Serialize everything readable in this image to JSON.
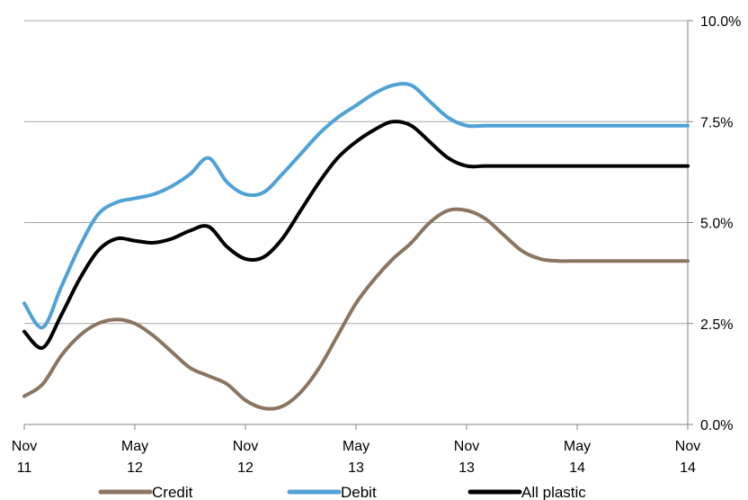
{
  "chart_data": {
    "type": "line",
    "title": "",
    "xlabel": "",
    "ylabel": "",
    "y_axis_side": "right",
    "ylim": [
      0,
      10
    ],
    "yticks": [
      0,
      2.5,
      5,
      7.5,
      10
    ],
    "ytick_labels": [
      "0.0%",
      "2.5%",
      "5.0%",
      "7.5%",
      "10.0%"
    ],
    "grid": "horizontal",
    "legend_position": "bottom",
    "x": [
      "2011-11",
      "2011-12",
      "2012-01",
      "2012-02",
      "2012-03",
      "2012-04",
      "2012-05",
      "2012-06",
      "2012-07",
      "2012-08",
      "2012-09",
      "2012-10",
      "2012-11",
      "2012-12",
      "2013-01",
      "2013-02",
      "2013-03",
      "2013-04",
      "2013-05",
      "2013-06",
      "2013-07",
      "2013-08",
      "2013-09",
      "2013-10",
      "2013-11",
      "2013-12",
      "2014-01",
      "2014-02",
      "2014-03",
      "2014-04",
      "2014-05",
      "2014-06",
      "2014-07",
      "2014-08",
      "2014-09",
      "2014-10",
      "2014-11"
    ],
    "x_ticks": [
      {
        "month": "Nov",
        "year": "11",
        "x": "2011-11"
      },
      {
        "month": "May",
        "year": "12",
        "x": "2012-05"
      },
      {
        "month": "Nov",
        "year": "12",
        "x": "2012-11"
      },
      {
        "month": "May",
        "year": "13",
        "x": "2013-05"
      },
      {
        "month": "Nov",
        "year": "13",
        "x": "2013-11"
      },
      {
        "month": "May",
        "year": "14",
        "x": "2014-05"
      },
      {
        "month": "Nov",
        "year": "14",
        "x": "2014-11"
      }
    ],
    "series": [
      {
        "name": "Credit",
        "color": "#8b7560",
        "values": [
          0.7,
          1.0,
          1.7,
          2.2,
          2.5,
          2.6,
          2.5,
          2.2,
          1.8,
          1.4,
          1.2,
          1.0,
          0.6,
          0.4,
          0.45,
          0.8,
          1.4,
          2.2,
          3.0,
          3.6,
          4.1,
          4.5,
          5.0,
          5.3,
          5.3,
          5.1,
          4.7,
          4.3,
          4.1,
          4.05,
          4.05,
          4.05,
          4.05,
          4.05,
          4.05,
          4.05,
          4.05
        ]
      },
      {
        "name": "Debit",
        "color": "#4fa1d6",
        "values": [
          3.0,
          2.4,
          3.4,
          4.4,
          5.2,
          5.5,
          5.6,
          5.7,
          5.9,
          6.2,
          6.6,
          6.0,
          5.7,
          5.75,
          6.2,
          6.7,
          7.2,
          7.6,
          7.9,
          8.2,
          8.4,
          8.4,
          8.0,
          7.6,
          7.4,
          7.4,
          7.4,
          7.4,
          7.4,
          7.4,
          7.4,
          7.4,
          7.4,
          7.4,
          7.4,
          7.4,
          7.4
        ]
      },
      {
        "name": "All plastic",
        "color": "#000000",
        "values": [
          2.3,
          1.9,
          2.7,
          3.6,
          4.3,
          4.6,
          4.55,
          4.5,
          4.6,
          4.8,
          4.9,
          4.4,
          4.1,
          4.15,
          4.6,
          5.3,
          6.0,
          6.6,
          7.0,
          7.3,
          7.5,
          7.4,
          7.0,
          6.6,
          6.4,
          6.4,
          6.4,
          6.4,
          6.4,
          6.4,
          6.4,
          6.4,
          6.4,
          6.4,
          6.4,
          6.4,
          6.4
        ]
      }
    ]
  }
}
